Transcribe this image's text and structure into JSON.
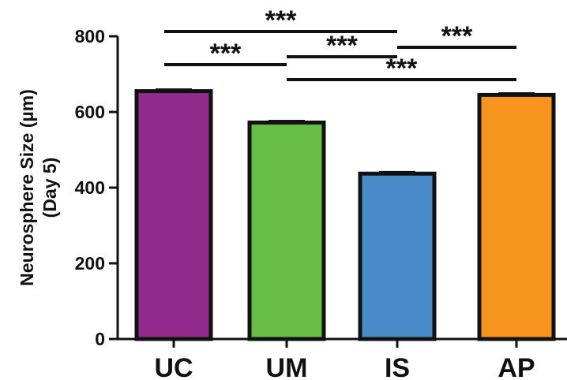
{
  "chart_data": {
    "type": "bar",
    "categories": [
      "UC",
      "UM",
      "IS",
      "AP"
    ],
    "values": [
      655,
      572,
      437,
      645
    ],
    "errors": [
      4,
      4,
      4,
      4
    ],
    "colors": [
      "#922a8c",
      "#67bd45",
      "#4a8cca",
      "#f7941d"
    ],
    "ylabel_lines": [
      "Neurosphere Size (µm)",
      "(Day 5)"
    ],
    "xlabel": "",
    "title": "",
    "ylim": [
      0,
      800
    ],
    "yticks": [
      0,
      200,
      400,
      600,
      800
    ],
    "grid": false,
    "significance": [
      {
        "from": 0,
        "to": 2,
        "label": "***"
      },
      {
        "from": 2,
        "to": 3,
        "label": "***"
      },
      {
        "from": 0,
        "to": 1,
        "label": "***"
      },
      {
        "from": 1,
        "to": 2,
        "label": "***"
      },
      {
        "from": 1,
        "to": 3,
        "label": "***"
      }
    ]
  }
}
